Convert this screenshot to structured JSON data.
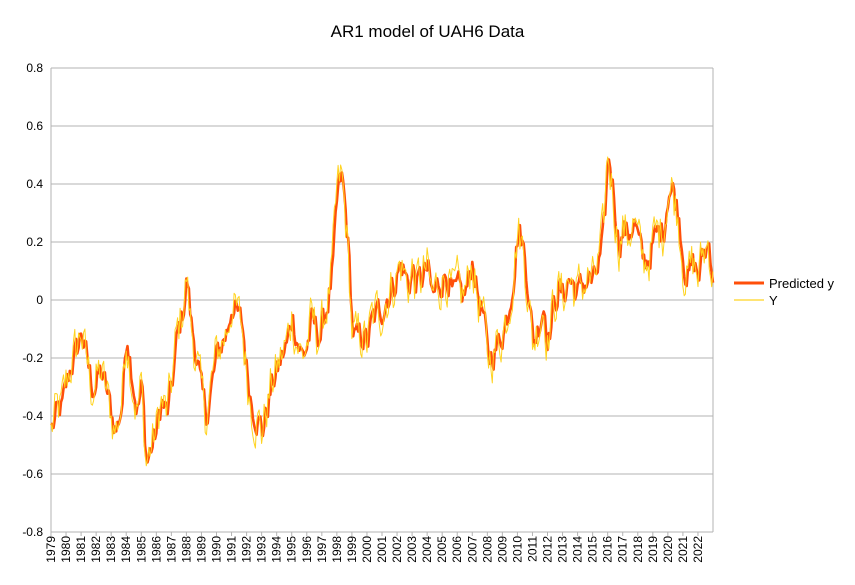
{
  "chart_data": {
    "type": "line",
    "title": "AR1 model of UAH6 Data",
    "xlabel": "",
    "ylabel": "",
    "ylim": [
      -0.8,
      0.8
    ],
    "y_ticks": [
      "0.8",
      "0.6",
      "0.4",
      "0.2",
      "0",
      "-0.2",
      "-0.4",
      "-0.6",
      "-0.8"
    ],
    "x_ticks": [
      "1979",
      "1980",
      "1981",
      "1982",
      "1983",
      "1984",
      "1985",
      "1986",
      "1987",
      "1988",
      "1989",
      "1990",
      "1991",
      "1992",
      "1993",
      "1994",
      "1995",
      "1996",
      "1997",
      "1998",
      "1999",
      "2000",
      "2001",
      "2002",
      "2003",
      "2004",
      "2005",
      "2006",
      "2007",
      "2008",
      "2009",
      "2010",
      "2011",
      "2012",
      "2013",
      "2014",
      "2015",
      "2016",
      "2017",
      "2018",
      "2019",
      "2020",
      "2021",
      "2022"
    ],
    "x_range": [
      1979.0,
      2023.0
    ],
    "grid": true,
    "legend_position": "right",
    "anchors": [
      [
        1979.0,
        -0.45
      ],
      [
        1979.3,
        -0.4
      ],
      [
        1979.7,
        -0.38
      ],
      [
        1980.0,
        -0.3
      ],
      [
        1980.3,
        -0.22
      ],
      [
        1980.7,
        -0.18
      ],
      [
        1981.0,
        -0.1
      ],
      [
        1981.3,
        -0.2
      ],
      [
        1981.7,
        -0.3
      ],
      [
        1982.0,
        -0.28
      ],
      [
        1982.3,
        -0.25
      ],
      [
        1982.7,
        -0.33
      ],
      [
        1983.0,
        -0.4
      ],
      [
        1983.3,
        -0.45
      ],
      [
        1983.7,
        -0.35
      ],
      [
        1984.0,
        -0.1
      ],
      [
        1984.3,
        -0.22
      ],
      [
        1984.7,
        -0.38
      ],
      [
        1985.0,
        -0.3
      ],
      [
        1985.3,
        -0.56
      ],
      [
        1985.7,
        -0.5
      ],
      [
        1986.0,
        -0.45
      ],
      [
        1986.3,
        -0.35
      ],
      [
        1986.7,
        -0.4
      ],
      [
        1987.0,
        -0.3
      ],
      [
        1987.3,
        -0.15
      ],
      [
        1987.7,
        -0.05
      ],
      [
        1988.0,
        0.08
      ],
      [
        1988.3,
        -0.1
      ],
      [
        1988.7,
        -0.2
      ],
      [
        1989.0,
        -0.35
      ],
      [
        1989.3,
        -0.4
      ],
      [
        1989.7,
        -0.28
      ],
      [
        1990.0,
        -0.2
      ],
      [
        1990.3,
        -0.15
      ],
      [
        1990.7,
        -0.1
      ],
      [
        1991.0,
        0.0
      ],
      [
        1991.3,
        -0.05
      ],
      [
        1991.7,
        -0.1
      ],
      [
        1992.0,
        -0.25
      ],
      [
        1992.3,
        -0.35
      ],
      [
        1992.7,
        -0.4
      ],
      [
        1993.0,
        -0.45
      ],
      [
        1993.3,
        -0.38
      ],
      [
        1993.7,
        -0.28
      ],
      [
        1994.0,
        -0.25
      ],
      [
        1994.3,
        -0.2
      ],
      [
        1994.7,
        -0.15
      ],
      [
        1995.0,
        -0.05
      ],
      [
        1995.3,
        -0.12
      ],
      [
        1995.7,
        -0.2
      ],
      [
        1996.0,
        -0.15
      ],
      [
        1996.3,
        -0.08
      ],
      [
        1996.7,
        -0.12
      ],
      [
        1997.0,
        -0.1
      ],
      [
        1997.3,
        -0.02
      ],
      [
        1997.7,
        0.1
      ],
      [
        1998.0,
        0.35
      ],
      [
        1998.3,
        0.42
      ],
      [
        1998.7,
        0.2
      ],
      [
        1999.0,
        -0.1
      ],
      [
        1999.3,
        -0.15
      ],
      [
        1999.7,
        -0.12
      ],
      [
        2000.0,
        -0.15
      ],
      [
        2000.3,
        -0.08
      ],
      [
        2000.7,
        -0.05
      ],
      [
        2001.0,
        -0.02
      ],
      [
        2001.3,
        0.02
      ],
      [
        2001.7,
        0.05
      ],
      [
        2002.0,
        0.1
      ],
      [
        2002.3,
        0.12
      ],
      [
        2002.7,
        0.05
      ],
      [
        2003.0,
        0.1
      ],
      [
        2003.3,
        0.05
      ],
      [
        2003.7,
        0.08
      ],
      [
        2004.0,
        0.1
      ],
      [
        2004.3,
        0.0
      ],
      [
        2004.7,
        0.05
      ],
      [
        2005.0,
        0.08
      ],
      [
        2005.3,
        0.1
      ],
      [
        2005.7,
        0.0
      ],
      [
        2006.0,
        0.02
      ],
      [
        2006.3,
        0.0
      ],
      [
        2006.7,
        0.05
      ],
      [
        2007.0,
        0.15
      ],
      [
        2007.3,
        0.02
      ],
      [
        2007.7,
        -0.05
      ],
      [
        2008.0,
        -0.22
      ],
      [
        2008.3,
        -0.18
      ],
      [
        2008.7,
        -0.15
      ],
      [
        2009.0,
        -0.1
      ],
      [
        2009.3,
        -0.05
      ],
      [
        2009.7,
        0.1
      ],
      [
        2010.0,
        0.25
      ],
      [
        2010.3,
        0.2
      ],
      [
        2010.7,
        0.05
      ],
      [
        2011.0,
        -0.15
      ],
      [
        2011.3,
        -0.1
      ],
      [
        2011.7,
        0.0
      ],
      [
        2012.0,
        -0.12
      ],
      [
        2012.3,
        -0.05
      ],
      [
        2012.7,
        0.05
      ],
      [
        2013.0,
        0.0
      ],
      [
        2013.3,
        0.08
      ],
      [
        2013.7,
        0.05
      ],
      [
        2014.0,
        0.02
      ],
      [
        2014.3,
        0.05
      ],
      [
        2014.7,
        0.08
      ],
      [
        2015.0,
        0.05
      ],
      [
        2015.3,
        0.1
      ],
      [
        2015.7,
        0.2
      ],
      [
        2016.0,
        0.5
      ],
      [
        2016.3,
        0.4
      ],
      [
        2016.7,
        0.2
      ],
      [
        2017.0,
        0.25
      ],
      [
        2017.3,
        0.22
      ],
      [
        2017.7,
        0.28
      ],
      [
        2018.0,
        0.2
      ],
      [
        2018.3,
        0.12
      ],
      [
        2018.7,
        0.15
      ],
      [
        2019.0,
        0.2
      ],
      [
        2019.3,
        0.22
      ],
      [
        2019.7,
        0.25
      ],
      [
        2020.0,
        0.4
      ],
      [
        2020.3,
        0.38
      ],
      [
        2020.7,
        0.3
      ],
      [
        2021.0,
        0.15
      ],
      [
        2021.3,
        0.08
      ],
      [
        2021.7,
        0.12
      ],
      [
        2022.0,
        0.08
      ],
      [
        2022.3,
        0.15
      ],
      [
        2022.7,
        0.2
      ],
      [
        2023.0,
        0.08
      ]
    ],
    "series": [
      {
        "name": "Predicted y",
        "color": "#ff4f0a",
        "role": "thick"
      },
      {
        "name": "Y",
        "color": "#ffd320",
        "role": "thin"
      }
    ]
  }
}
